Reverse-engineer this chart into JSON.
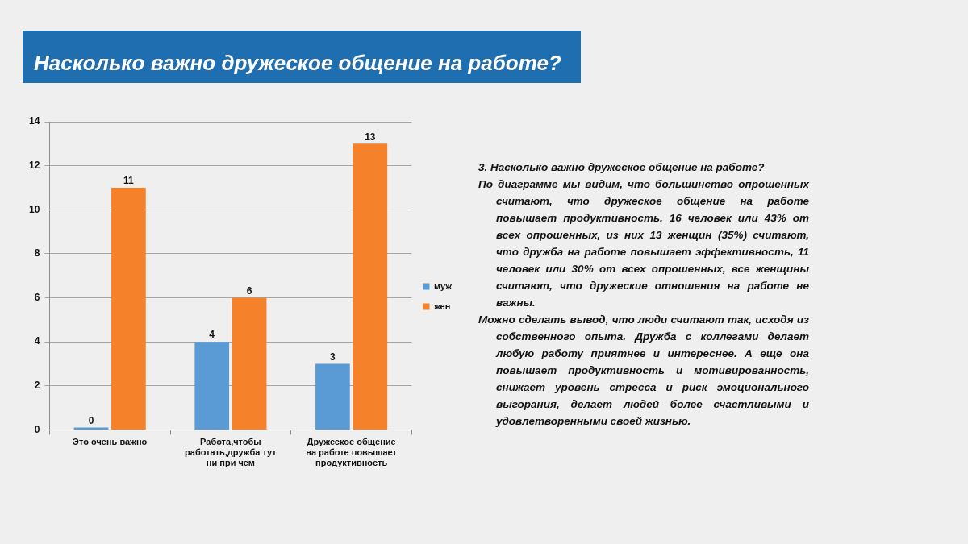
{
  "chart_data": {
    "type": "bar",
    "title": "Насколько важно дружеское общение на работе?",
    "categories": [
      "Это очень важно",
      "Работа,чтобы работать,дружба тут ни при чем",
      "Дружеское общение на работе повышает продуктивность"
    ],
    "series": [
      {
        "name": "муж",
        "color": "#5b9bd5",
        "values": [
          0,
          4,
          3
        ]
      },
      {
        "name": "жен",
        "color": "#f5822a",
        "values": [
          11,
          6,
          13
        ]
      }
    ],
    "ylim": [
      0,
      14
    ],
    "yticks": [
      0,
      2,
      4,
      6,
      8,
      10,
      12,
      14
    ],
    "grid": "y",
    "legend": "right",
    "data_labels": true,
    "annotations": [
      "3. Насколько важно дружеское общение на работе?",
      "По диаграмме мы видим, что большинство опрошенных считают, что дружеское общение на работе повышает продуктивность. 16 человек или 43% от всех опрошенных, из них 13 женщин (35%) считают, что дружба на работе повышает эффективность, 11 человек или 30% от всех опрошенных, все женщины считают, что дружеские отношения на работе не важны.",
      "Можно сделать вывод, что люди считают так, исходя из собственного опыта. Дружба с коллегами делает любую работу приятнее и интереснее. А еще она повышает продуктивность и мотивированность, снижает уровень стресса и риск эмоционального выгорания, делает людей более счастливыми и удовлетворенными своей жизнью."
    ]
  }
}
